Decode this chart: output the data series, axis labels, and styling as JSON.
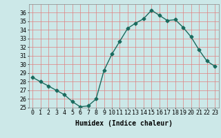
{
  "x": [
    0,
    1,
    2,
    3,
    4,
    5,
    6,
    7,
    8,
    9,
    10,
    11,
    12,
    13,
    14,
    15,
    16,
    17,
    18,
    19,
    20,
    21,
    22,
    23
  ],
  "y": [
    28.5,
    28.0,
    27.5,
    27.0,
    26.5,
    25.7,
    25.1,
    25.2,
    26.0,
    29.3,
    31.2,
    32.7,
    34.2,
    34.8,
    35.3,
    36.3,
    35.7,
    35.1,
    35.2,
    34.3,
    33.2,
    31.7,
    30.4,
    29.8
  ],
  "line_color": "#1a6b5e",
  "marker": "D",
  "markersize": 2.5,
  "linewidth": 1.0,
  "xlabel": "Humidex (Indice chaleur)",
  "bg_color": "#cce8e8",
  "grid_color": "#e08080",
  "ylim": [
    25,
    37
  ],
  "xlim": [
    -0.5,
    23.5
  ],
  "yticks": [
    25,
    26,
    27,
    28,
    29,
    30,
    31,
    32,
    33,
    34,
    35,
    36
  ],
  "xticks": [
    0,
    1,
    2,
    3,
    4,
    5,
    6,
    7,
    8,
    9,
    10,
    11,
    12,
    13,
    14,
    15,
    16,
    17,
    18,
    19,
    20,
    21,
    22,
    23
  ],
  "xlabel_fontsize": 7,
  "tick_fontsize": 6
}
